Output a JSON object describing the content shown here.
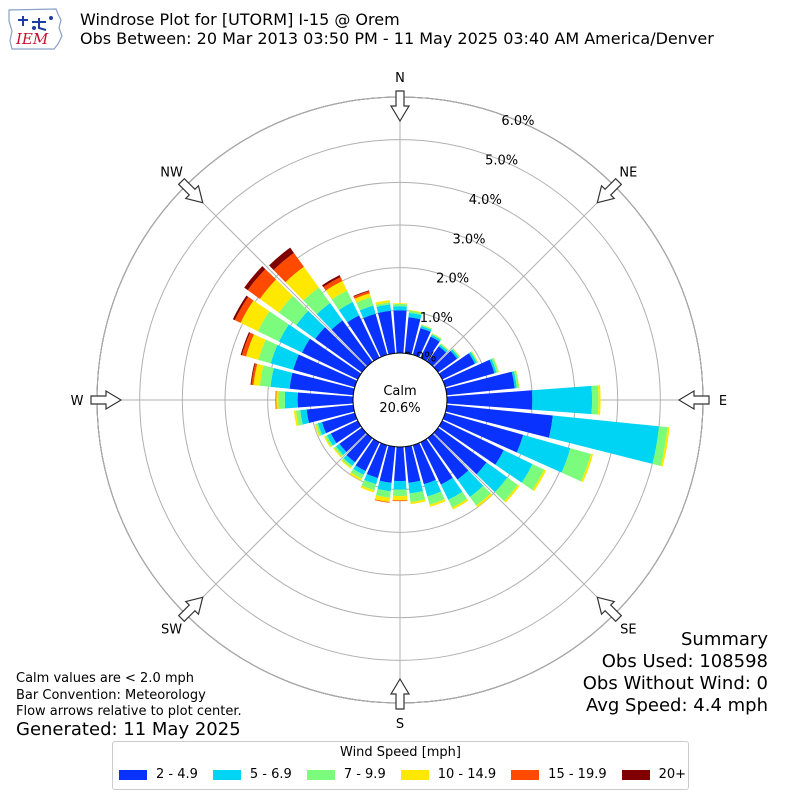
{
  "header": {
    "logo_text": "IEM",
    "title": "Windrose Plot for [UTORM] I-15 @ Orem",
    "subtitle": "Obs Between: 20 Mar 2013 03:50 PM - 11 May 2025 03:40 AM America/Denver"
  },
  "notes": {
    "calm_def": "Calm values are < 2.0 mph",
    "bar_convention": "Bar Convention: Meteorology",
    "flow_arrows": "Flow arrows relative to plot center.",
    "generated": "Generated: 11 May 2025"
  },
  "summary": {
    "title": "Summary",
    "obs_used": "Obs Used: 108598",
    "obs_without_wind": "Obs Without Wind: 0",
    "avg_speed": "Avg Speed: 4.4 mph"
  },
  "legend": {
    "title": "Wind Speed [mph]",
    "items": [
      {
        "label": "2 - 4.9",
        "color": "#0a32ff"
      },
      {
        "label": "5 - 6.9",
        "color": "#00d4f4"
      },
      {
        "label": "7 - 9.9",
        "color": "#7cfc7c"
      },
      {
        "label": "10 - 14.9",
        "color": "#ffe800"
      },
      {
        "label": "15 - 19.9",
        "color": "#ff4a00"
      },
      {
        "label": "20+",
        "color": "#800000"
      }
    ]
  },
  "chart_data": {
    "type": "windrose",
    "title": "Windrose Plot for [UTORM] I-15 @ Orem",
    "calm_label": "Calm",
    "calm_value": "20.6%",
    "radial_unit": "%",
    "radial_ticks": [
      "0.0%",
      "1.0%",
      "2.0%",
      "3.0%",
      "4.0%",
      "5.0%",
      "6.0%"
    ],
    "radial_max": 6.0,
    "direction_labels": [
      "N",
      "NE",
      "E",
      "SE",
      "S",
      "SW",
      "W",
      "NW"
    ],
    "speed_bins": [
      "2 - 4.9",
      "5 - 6.9",
      "7 - 9.9",
      "10 - 14.9",
      "15 - 19.9",
      "20+"
    ],
    "sector_width_deg": 10,
    "directions_deg": [
      0,
      10,
      20,
      30,
      40,
      50,
      60,
      70,
      80,
      90,
      100,
      110,
      120,
      130,
      140,
      150,
      160,
      170,
      180,
      190,
      200,
      210,
      220,
      230,
      240,
      250,
      260,
      270,
      280,
      290,
      300,
      310,
      320,
      330,
      340,
      350
    ],
    "series": [
      {
        "name": "2 - 4.9",
        "values": [
          1.0,
          0.85,
          0.65,
          0.55,
          0.45,
          0.55,
          0.85,
          1.2,
          1.6,
          2.0,
          2.5,
          1.9,
          1.6,
          1.4,
          1.2,
          1.1,
          0.95,
          0.85,
          0.8,
          0.85,
          0.8,
          0.75,
          0.7,
          0.65,
          0.7,
          0.8,
          1.1,
          1.3,
          1.5,
          1.5,
          1.45,
          1.35,
          1.2,
          1.1,
          1.0,
          1.0
        ]
      },
      {
        "name": "5 - 6.9",
        "values": [
          0.1,
          0.1,
          0.05,
          0.05,
          0.05,
          0.05,
          0.05,
          0.05,
          0.05,
          1.4,
          2.5,
          1.15,
          0.75,
          0.6,
          0.5,
          0.4,
          0.3,
          0.25,
          0.2,
          0.2,
          0.15,
          0.1,
          0.1,
          0.1,
          0.1,
          0.1,
          0.15,
          0.3,
          0.45,
          0.55,
          0.6,
          0.55,
          0.5,
          0.35,
          0.2,
          0.15
        ]
      },
      {
        "name": "7 - 9.9",
        "values": [
          0.05,
          0.05,
          0.03,
          0.03,
          0.03,
          0.03,
          0.03,
          0.05,
          0.05,
          0.15,
          0.2,
          0.5,
          0.3,
          0.3,
          0.25,
          0.2,
          0.2,
          0.2,
          0.15,
          0.15,
          0.15,
          0.1,
          0.05,
          0.05,
          0.05,
          0.05,
          0.1,
          0.15,
          0.25,
          0.3,
          0.55,
          0.5,
          0.45,
          0.3,
          0.2,
          0.05
        ]
      },
      {
        "name": "10 - 14.9",
        "values": [
          0.02,
          0.02,
          0.01,
          0.01,
          0.01,
          0.01,
          0.01,
          0.01,
          0.01,
          0.05,
          0.05,
          0.05,
          0.05,
          0.05,
          0.05,
          0.05,
          0.05,
          0.05,
          0.1,
          0.1,
          0.05,
          0.05,
          0.03,
          0.03,
          0.03,
          0.03,
          0.05,
          0.05,
          0.15,
          0.3,
          0.45,
          0.55,
          0.6,
          0.25,
          0.1,
          0.05
        ]
      },
      {
        "name": "15 - 19.9",
        "values": [
          0.0,
          0.0,
          0.0,
          0.0,
          0.0,
          0.0,
          0.0,
          0.0,
          0.0,
          0.0,
          0.0,
          0.0,
          0.0,
          0.0,
          0.0,
          0.0,
          0.0,
          0.0,
          0.02,
          0.02,
          0.0,
          0.0,
          0.0,
          0.0,
          0.0,
          0.0,
          0.0,
          0.02,
          0.05,
          0.1,
          0.15,
          0.35,
          0.4,
          0.1,
          0.05,
          0.0
        ]
      },
      {
        "name": "20+",
        "values": [
          0.0,
          0.0,
          0.0,
          0.0,
          0.0,
          0.0,
          0.0,
          0.0,
          0.0,
          0.0,
          0.0,
          0.0,
          0.0,
          0.0,
          0.0,
          0.0,
          0.0,
          0.0,
          0.0,
          0.0,
          0.0,
          0.0,
          0.0,
          0.0,
          0.0,
          0.0,
          0.0,
          0.0,
          0.02,
          0.03,
          0.05,
          0.1,
          0.15,
          0.05,
          0.02,
          0.0
        ]
      }
    ],
    "grid": true
  }
}
